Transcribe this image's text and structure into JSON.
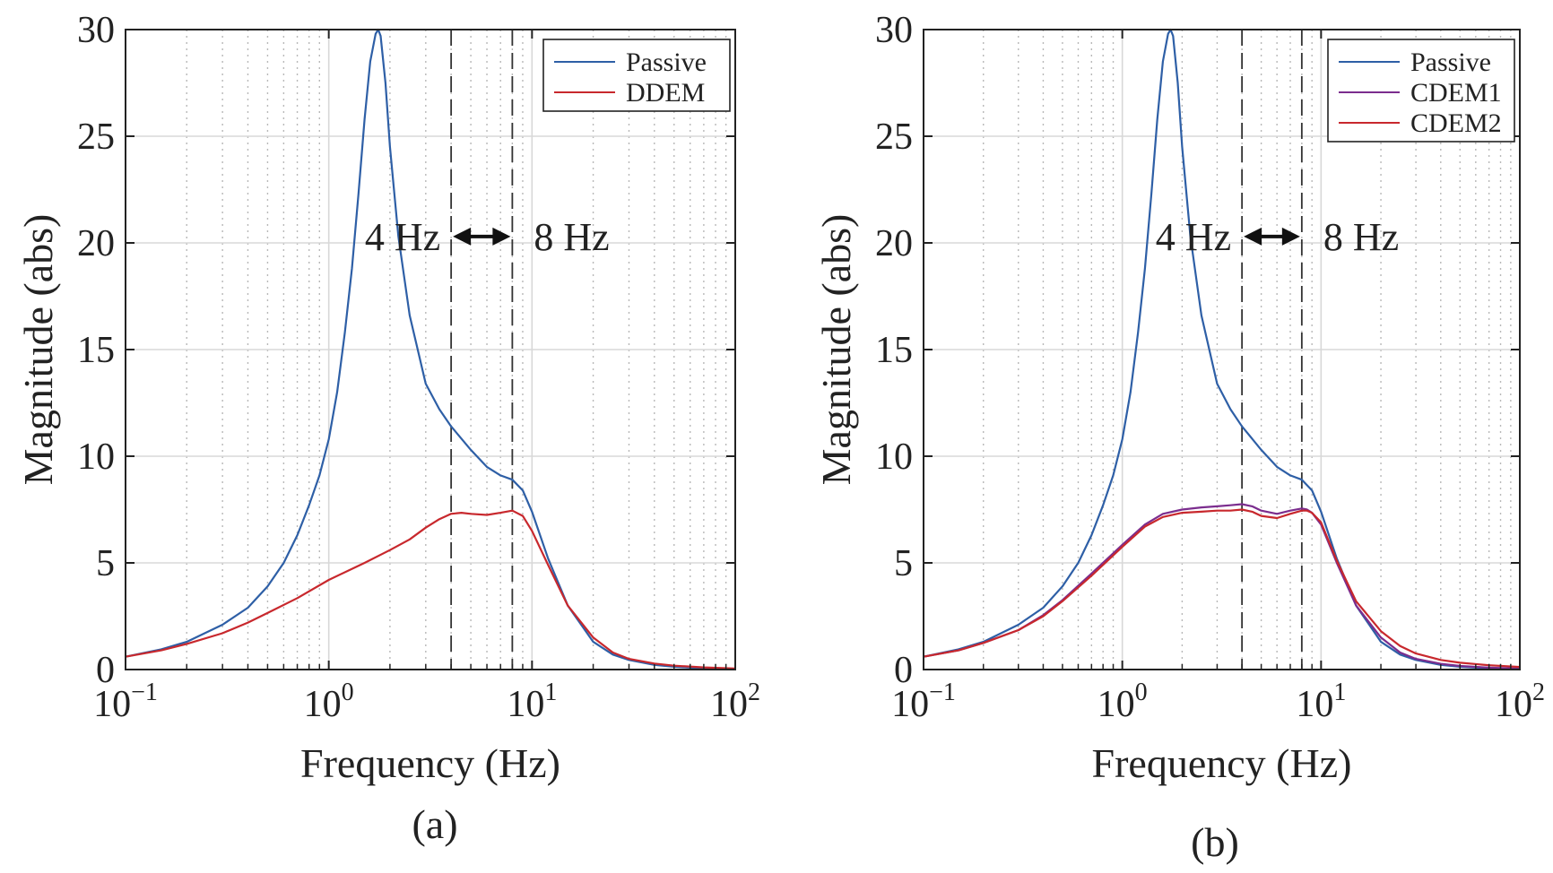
{
  "chart_data": [
    {
      "type": "line",
      "panel_label": "(a)",
      "xlabel": "Frequency (Hz)",
      "ylabel": "Magnitude (abs)",
      "xscale": "log",
      "xlim": [
        0.1,
        100
      ],
      "ylim": [
        0,
        30
      ],
      "yticks": [
        "0",
        "5",
        "10",
        "15",
        "20",
        "25",
        "30"
      ],
      "xticks": [
        {
          "base": "10",
          "exp": "−1"
        },
        {
          "base": "10",
          "exp": "0"
        },
        {
          "base": "10",
          "exp": "1"
        },
        {
          "base": "10",
          "exp": "2"
        }
      ],
      "grid": true,
      "legend_position": "top-right",
      "vlines": [
        4,
        8
      ],
      "annotations": {
        "left": "4 Hz",
        "right": "8 Hz",
        "arrow_y": 20.3
      },
      "series": [
        {
          "name": "Passive",
          "color": "#2e5fa6",
          "x": [
            0.1,
            0.15,
            0.2,
            0.3,
            0.4,
            0.5,
            0.6,
            0.7,
            0.8,
            0.9,
            1.0,
            1.1,
            1.2,
            1.3,
            1.4,
            1.5,
            1.6,
            1.7,
            1.75,
            1.8,
            1.9,
            2.0,
            2.2,
            2.5,
            3.0,
            3.5,
            4.0,
            5.0,
            6.0,
            7.0,
            8.0,
            9.0,
            10,
            12,
            15,
            20,
            25,
            30,
            40,
            50,
            70,
            100
          ],
          "y": [
            0.6,
            0.95,
            1.3,
            2.1,
            2.9,
            3.9,
            5.0,
            6.3,
            7.7,
            9.1,
            10.8,
            13.0,
            15.8,
            18.8,
            22.3,
            25.8,
            28.5,
            29.8,
            30.0,
            29.7,
            27.5,
            24.5,
            20.3,
            16.6,
            13.4,
            12.2,
            11.4,
            10.3,
            9.5,
            9.1,
            8.9,
            8.4,
            7.4,
            5.2,
            3.0,
            1.3,
            0.7,
            0.45,
            0.22,
            0.13,
            0.06,
            0.02
          ]
        },
        {
          "name": "DDEM",
          "color": "#c8282d",
          "x": [
            0.1,
            0.15,
            0.2,
            0.3,
            0.4,
            0.5,
            0.7,
            1.0,
            1.5,
            2.0,
            2.5,
            3.0,
            3.5,
            4.0,
            4.5,
            5.0,
            6.0,
            7.0,
            8.0,
            9.0,
            10,
            12,
            15,
            20,
            25,
            30,
            40,
            50,
            70,
            100
          ],
          "y": [
            0.6,
            0.9,
            1.2,
            1.7,
            2.2,
            2.65,
            3.35,
            4.2,
            5.0,
            5.6,
            6.1,
            6.65,
            7.05,
            7.3,
            7.35,
            7.3,
            7.25,
            7.35,
            7.45,
            7.2,
            6.5,
            4.9,
            3.0,
            1.5,
            0.8,
            0.5,
            0.28,
            0.18,
            0.1,
            0.05
          ]
        }
      ]
    },
    {
      "type": "line",
      "panel_label": "(b)",
      "xlabel": "Frequency (Hz)",
      "ylabel": "Magnitude (abs)",
      "xscale": "log",
      "xlim": [
        0.1,
        100
      ],
      "ylim": [
        0,
        30
      ],
      "yticks": [
        "0",
        "5",
        "10",
        "15",
        "20",
        "25",
        "30"
      ],
      "xticks": [
        {
          "base": "10",
          "exp": "−1"
        },
        {
          "base": "10",
          "exp": "0"
        },
        {
          "base": "10",
          "exp": "1"
        },
        {
          "base": "10",
          "exp": "2"
        }
      ],
      "grid": true,
      "legend_position": "top-right",
      "vlines": [
        4,
        8
      ],
      "annotations": {
        "left": "4 Hz",
        "right": "8 Hz",
        "arrow_y": 20.3
      },
      "series": [
        {
          "name": "Passive",
          "color": "#2e5fa6",
          "x": [
            0.1,
            0.15,
            0.2,
            0.3,
            0.4,
            0.5,
            0.6,
            0.7,
            0.8,
            0.9,
            1.0,
            1.1,
            1.2,
            1.3,
            1.4,
            1.5,
            1.6,
            1.7,
            1.75,
            1.8,
            1.9,
            2.0,
            2.2,
            2.5,
            3.0,
            3.5,
            4.0,
            5.0,
            6.0,
            7.0,
            8.0,
            9.0,
            10,
            12,
            15,
            20,
            25,
            30,
            40,
            50,
            70,
            100
          ],
          "y": [
            0.6,
            0.95,
            1.3,
            2.1,
            2.9,
            3.9,
            5.0,
            6.3,
            7.7,
            9.1,
            10.8,
            13.0,
            15.8,
            18.8,
            22.3,
            25.8,
            28.5,
            29.8,
            30.0,
            29.7,
            27.5,
            24.5,
            20.3,
            16.6,
            13.4,
            12.2,
            11.4,
            10.3,
            9.5,
            9.1,
            8.9,
            8.4,
            7.4,
            5.2,
            3.0,
            1.3,
            0.7,
            0.45,
            0.22,
            0.13,
            0.06,
            0.02
          ]
        },
        {
          "name": "CDEM1",
          "color": "#7b2d8e",
          "x": [
            0.1,
            0.15,
            0.2,
            0.3,
            0.4,
            0.5,
            0.7,
            1.0,
            1.3,
            1.6,
            2.0,
            2.5,
            3.0,
            3.5,
            4.0,
            4.5,
            5.0,
            6.0,
            7.0,
            8.0,
            8.5,
            9.0,
            10,
            12,
            15,
            20,
            25,
            30,
            40,
            50,
            70,
            100
          ],
          "y": [
            0.6,
            0.9,
            1.25,
            1.85,
            2.55,
            3.25,
            4.5,
            5.85,
            6.8,
            7.3,
            7.5,
            7.6,
            7.65,
            7.7,
            7.75,
            7.65,
            7.45,
            7.3,
            7.45,
            7.55,
            7.5,
            7.35,
            6.8,
            5.0,
            3.0,
            1.5,
            0.8,
            0.5,
            0.27,
            0.17,
            0.09,
            0.04
          ]
        },
        {
          "name": "CDEM2",
          "color": "#c8282d",
          "x": [
            0.1,
            0.15,
            0.2,
            0.3,
            0.4,
            0.5,
            0.7,
            1.0,
            1.3,
            1.6,
            2.0,
            2.5,
            3.0,
            3.5,
            4.0,
            4.5,
            5.0,
            6.0,
            7.0,
            8.0,
            8.5,
            9.0,
            10,
            12,
            15,
            20,
            25,
            30,
            40,
            50,
            70,
            100
          ],
          "y": [
            0.6,
            0.9,
            1.25,
            1.85,
            2.5,
            3.2,
            4.4,
            5.75,
            6.7,
            7.15,
            7.35,
            7.4,
            7.45,
            7.45,
            7.5,
            7.4,
            7.2,
            7.1,
            7.3,
            7.45,
            7.45,
            7.35,
            6.9,
            5.1,
            3.2,
            1.8,
            1.1,
            0.75,
            0.45,
            0.32,
            0.2,
            0.12
          ]
        }
      ]
    }
  ]
}
